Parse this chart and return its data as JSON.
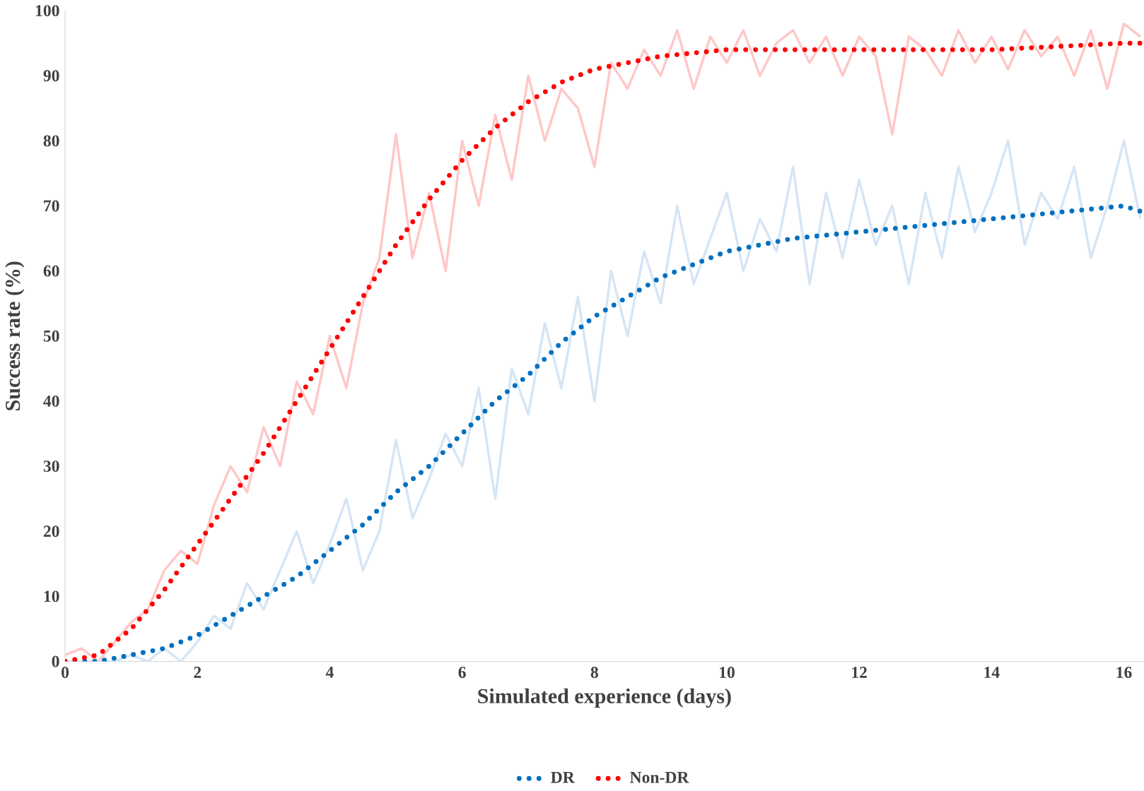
{
  "chart_data": {
    "type": "line",
    "xlabel": "Simulated experience (days)",
    "ylabel": "Success rate (%)",
    "xlim": [
      0,
      16.3
    ],
    "xticks": [
      0,
      2,
      4,
      6,
      8,
      10,
      12,
      14,
      16
    ],
    "ylim": [
      0,
      100
    ],
    "yticks": [
      0,
      10,
      20,
      30,
      40,
      50,
      60,
      70,
      80,
      90,
      100
    ],
    "grid": false,
    "legend": "bottom",
    "line_style": "solid",
    "series": [
      {
        "color": "#ffc7c7",
        "x": [
          0,
          0.25,
          0.5,
          0.75,
          1,
          1.25,
          1.5,
          1.75,
          2,
          2.25,
          2.5,
          2.75,
          3,
          3.25,
          3.5,
          3.75,
          4,
          4.25,
          4.5,
          4.75,
          5,
          5.25,
          5.5,
          5.75,
          6,
          6.25,
          6.5,
          6.75,
          7,
          7.25,
          7.5,
          7.75,
          8,
          8.25,
          8.5,
          8.75,
          9,
          9.25,
          9.5,
          9.75,
          10,
          10.25,
          10.5,
          10.75,
          11,
          11.25,
          11.5,
          11.75,
          12,
          12.25,
          12.5,
          12.75,
          13,
          13.25,
          13.5,
          13.75,
          14,
          14.25,
          14.5,
          14.75,
          15,
          15.25,
          15.5,
          15.75,
          16,
          16.25
        ],
        "values": [
          1,
          2,
          0,
          3,
          6,
          8,
          14,
          17,
          15,
          24,
          30,
          26,
          36,
          30,
          43,
          38,
          50,
          42,
          55,
          62,
          81,
          62,
          72,
          60,
          80,
          70,
          84,
          74,
          90,
          80,
          88,
          85,
          76,
          92,
          88,
          94,
          90,
          97,
          88,
          96,
          92,
          97,
          90,
          95,
          97,
          92,
          96,
          90,
          96,
          93,
          81,
          96,
          94,
          90,
          97,
          92,
          96,
          91,
          97,
          93,
          96,
          90,
          97,
          88,
          98,
          96
        ]
      },
      {
        "color": "#d5e5f5",
        "x": [
          0,
          0.25,
          0.5,
          0.75,
          1,
          1.25,
          1.5,
          1.75,
          2,
          2.25,
          2.5,
          2.75,
          3,
          3.25,
          3.5,
          3.75,
          4,
          4.25,
          4.5,
          4.75,
          5,
          5.25,
          5.5,
          5.75,
          6,
          6.25,
          6.5,
          6.75,
          7,
          7.25,
          7.5,
          7.75,
          8,
          8.25,
          8.5,
          8.75,
          9,
          9.25,
          9.5,
          9.75,
          10,
          10.25,
          10.5,
          10.75,
          11,
          11.25,
          11.5,
          11.75,
          12,
          12.25,
          12.5,
          12.75,
          13,
          13.25,
          13.5,
          13.75,
          14,
          14.25,
          14.5,
          14.75,
          15,
          15.25,
          15.5,
          15.75,
          16,
          16.25
        ],
        "values": [
          0,
          0,
          0,
          0,
          1,
          0,
          2,
          0,
          3,
          7,
          5,
          12,
          8,
          14,
          20,
          12,
          18,
          25,
          14,
          20,
          34,
          22,
          28,
          35,
          30,
          42,
          25,
          45,
          38,
          52,
          42,
          56,
          40,
          60,
          50,
          63,
          55,
          70,
          58,
          65,
          72,
          60,
          68,
          63,
          76,
          58,
          72,
          62,
          74,
          64,
          70,
          58,
          72,
          62,
          76,
          66,
          72,
          80,
          64,
          72,
          68,
          76,
          62,
          70,
          80,
          68
        ]
      },
      {
        "name": "DR",
        "color": "#0070c0",
        "line_style": "dotted",
        "x": [
          0,
          0.5,
          1,
          1.5,
          2,
          2.5,
          3,
          3.5,
          4,
          4.5,
          5,
          5.5,
          6,
          6.5,
          7,
          7.5,
          8,
          8.5,
          9,
          9.5,
          10,
          10.5,
          11,
          12,
          13,
          14,
          15,
          16,
          16.3
        ],
        "values": [
          0,
          0,
          1,
          2,
          4,
          7,
          10,
          13,
          17,
          21,
          26,
          30,
          35,
          40,
          44,
          49,
          53,
          56,
          59,
          61,
          63,
          64,
          65,
          66,
          67,
          68,
          69,
          70,
          69
        ]
      },
      {
        "name": "Non-DR",
        "color": "#ff0000",
        "line_style": "dotted",
        "x": [
          0,
          0.5,
          1,
          1.5,
          2,
          2.5,
          3,
          3.5,
          4,
          4.5,
          5,
          5.5,
          6,
          6.5,
          7,
          7.5,
          8,
          8.5,
          9,
          9.5,
          10,
          11,
          12,
          13,
          14,
          15,
          16,
          16.3
        ],
        "values": [
          0,
          1,
          5,
          11,
          18,
          25,
          32,
          40,
          48,
          56,
          64,
          71,
          77,
          82,
          86,
          89,
          91,
          92,
          93,
          93.5,
          94,
          94,
          94,
          94,
          94,
          94.5,
          95,
          95
        ]
      }
    ]
  }
}
